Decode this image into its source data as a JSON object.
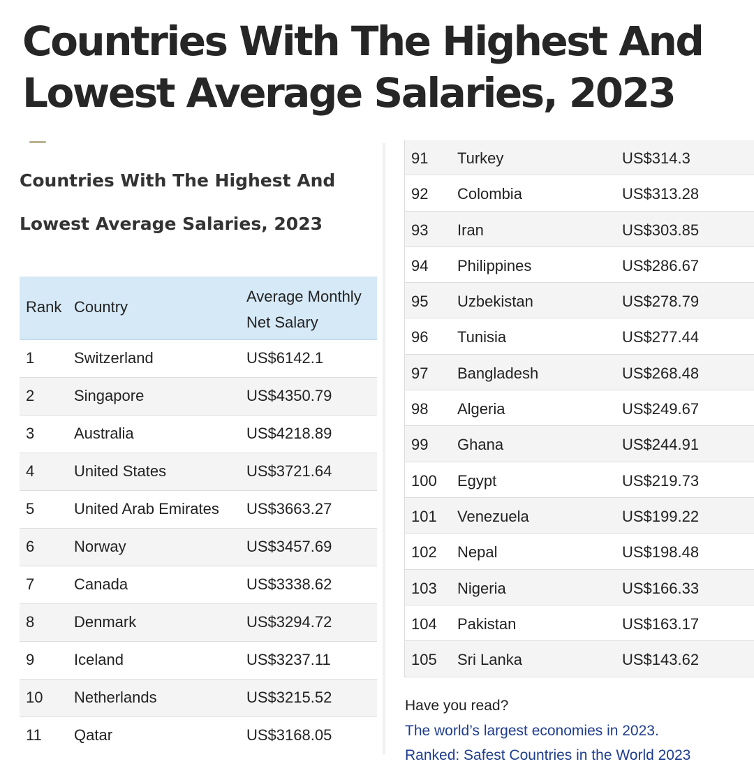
{
  "title": "Countries With The Highest And Lowest Average Salaries, 2023",
  "article": {
    "subtitle": "Countries With The Highest And Lowest Average Salaries, 2023",
    "headers": {
      "rank": "Rank",
      "country": "Country",
      "salary": "Average Monthly Net Salary"
    },
    "rows_top": [
      {
        "rank": "1",
        "country": "Switzerland",
        "salary": "US$6142.1"
      },
      {
        "rank": "2",
        "country": "Singapore",
        "salary": "US$4350.79"
      },
      {
        "rank": "3",
        "country": "Australia",
        "salary": "US$4218.89"
      },
      {
        "rank": "4",
        "country": "United States",
        "salary": "US$3721.64"
      },
      {
        "rank": "5",
        "country": "United Arab Emirates",
        "salary": "US$3663.27"
      },
      {
        "rank": "6",
        "country": "Norway",
        "salary": "US$3457.69"
      },
      {
        "rank": "7",
        "country": "Canada",
        "salary": "US$3338.62"
      },
      {
        "rank": "8",
        "country": "Denmark",
        "salary": "US$3294.72"
      },
      {
        "rank": "9",
        "country": "Iceland",
        "salary": "US$3237.11"
      },
      {
        "rank": "10",
        "country": "Netherlands",
        "salary": "US$3215.52"
      },
      {
        "rank": "11",
        "country": "Qatar",
        "salary": "US$3168.05"
      }
    ],
    "rows_bottom": [
      {
        "rank": "91",
        "country": "Turkey",
        "salary": "US$314.3"
      },
      {
        "rank": "92",
        "country": "Colombia",
        "salary": "US$313.28"
      },
      {
        "rank": "93",
        "country": "Iran",
        "salary": "US$303.85"
      },
      {
        "rank": "94",
        "country": "Philippines",
        "salary": "US$286.67"
      },
      {
        "rank": "95",
        "country": "Uzbekistan",
        "salary": "US$278.79"
      },
      {
        "rank": "96",
        "country": "Tunisia",
        "salary": "US$277.44"
      },
      {
        "rank": "97",
        "country": "Bangladesh",
        "salary": "US$268.48"
      },
      {
        "rank": "98",
        "country": "Algeria",
        "salary": "US$249.67"
      },
      {
        "rank": "99",
        "country": "Ghana",
        "salary": "US$244.91"
      },
      {
        "rank": "100",
        "country": "Egypt",
        "salary": "US$219.73"
      },
      {
        "rank": "101",
        "country": "Venezuela",
        "salary": "US$199.22"
      },
      {
        "rank": "102",
        "country": "Nepal",
        "salary": "US$198.48"
      },
      {
        "rank": "103",
        "country": "Nigeria",
        "salary": "US$166.33"
      },
      {
        "rank": "104",
        "country": "Pakistan",
        "salary": "US$163.17"
      },
      {
        "rank": "105",
        "country": "Sri Lanka",
        "salary": "US$143.62"
      }
    ],
    "related": {
      "label": "Have you read?",
      "links": [
        "The world’s largest economies in 2023.",
        "Ranked: Safest Countries in the World 2023"
      ]
    }
  },
  "colors": {
    "header_bg": "#d6e9f7",
    "stripe": "#f4f4f4",
    "link": "#1f3d8f",
    "title": "#262626"
  }
}
